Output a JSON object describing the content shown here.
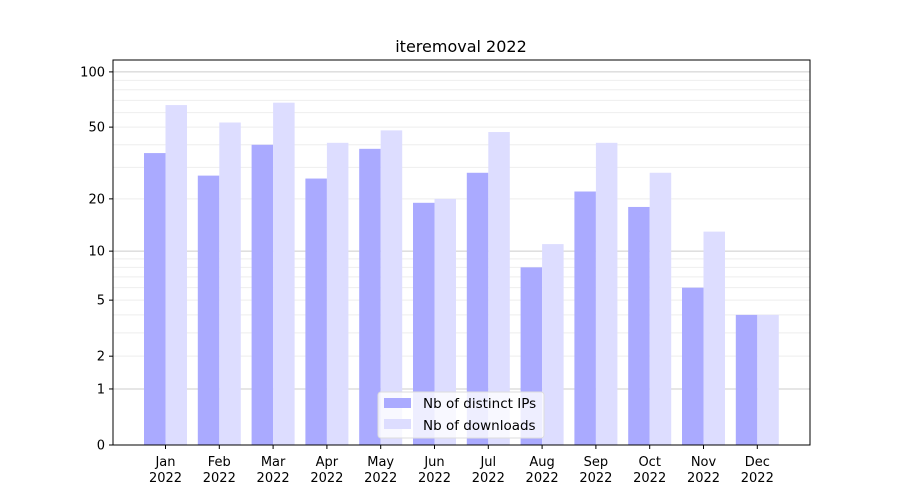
{
  "chart_data": {
    "type": "bar",
    "title": "iteremoval 2022",
    "xlabel": "",
    "ylabel": "",
    "yscale": "log(1+y)",
    "ylim": [
      0,
      116
    ],
    "yticks": [
      0,
      1,
      2,
      5,
      10,
      20,
      50,
      100
    ],
    "grid": true,
    "legend_position": "bottom-center",
    "categories": [
      "Jan\n2022",
      "Feb\n2022",
      "Mar\n2022",
      "Apr\n2022",
      "May\n2022",
      "Jun\n2022",
      "Jul\n2022",
      "Aug\n2022",
      "Sep\n2022",
      "Oct\n2022",
      "Nov\n2022",
      "Dec\n2022"
    ],
    "series": [
      {
        "name": "Nb of distinct IPs",
        "color": "#aaaaff",
        "values": [
          36,
          27,
          40,
          26,
          38,
          19,
          28,
          8,
          22,
          18,
          6,
          4
        ]
      },
      {
        "name": "Nb of downloads",
        "color": "#ddddff",
        "values": [
          66,
          53,
          68,
          41,
          48,
          20,
          47,
          11,
          41,
          28,
          13,
          4
        ]
      }
    ]
  }
}
